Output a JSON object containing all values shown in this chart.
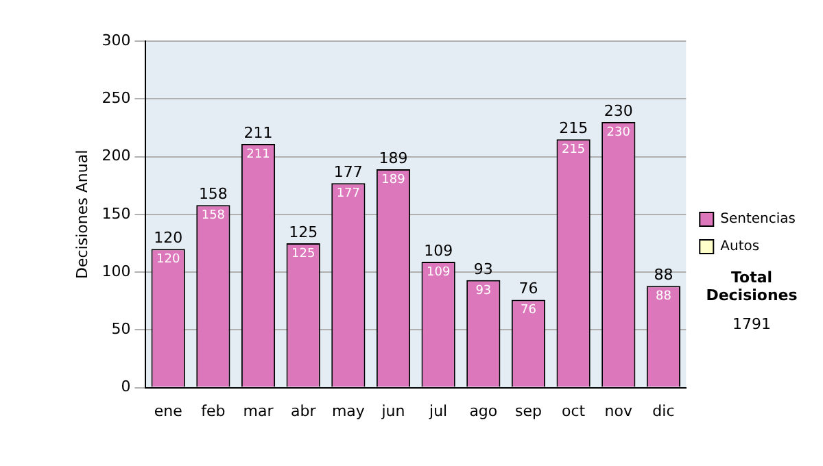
{
  "chart_data": {
    "type": "bar",
    "ylabel": "Decisiones Anual",
    "categories": [
      "ene",
      "feb",
      "mar",
      "abr",
      "may",
      "jun",
      "jul",
      "ago",
      "sep",
      "oct",
      "nov",
      "dic"
    ],
    "series": [
      {
        "name": "Sentencias",
        "color": "#dd77bb",
        "values": [
          120,
          158,
          211,
          125,
          177,
          189,
          109,
          93,
          76,
          215,
          230,
          88
        ],
        "value_labels": [
          "120",
          "158",
          "211",
          "125",
          "177",
          "189",
          "109",
          "93",
          "76",
          "215",
          "230",
          "88"
        ]
      },
      {
        "name": "Autos",
        "color": "#ffffcc",
        "values": [
          0,
          0,
          0,
          0,
          0,
          0,
          0,
          0,
          0,
          0,
          0,
          0
        ]
      }
    ],
    "stacked": true,
    "totals": [
      "120",
      "158",
      "211",
      "125",
      "177",
      "189",
      "109",
      "93",
      "76",
      "215",
      "230",
      "88"
    ],
    "ylim": [
      0,
      300
    ],
    "yticks": [
      0,
      50,
      100,
      150,
      200,
      250,
      300
    ],
    "grid": "y",
    "legend": "right",
    "annotations": [
      "Total Decisiones",
      "1791"
    ]
  }
}
